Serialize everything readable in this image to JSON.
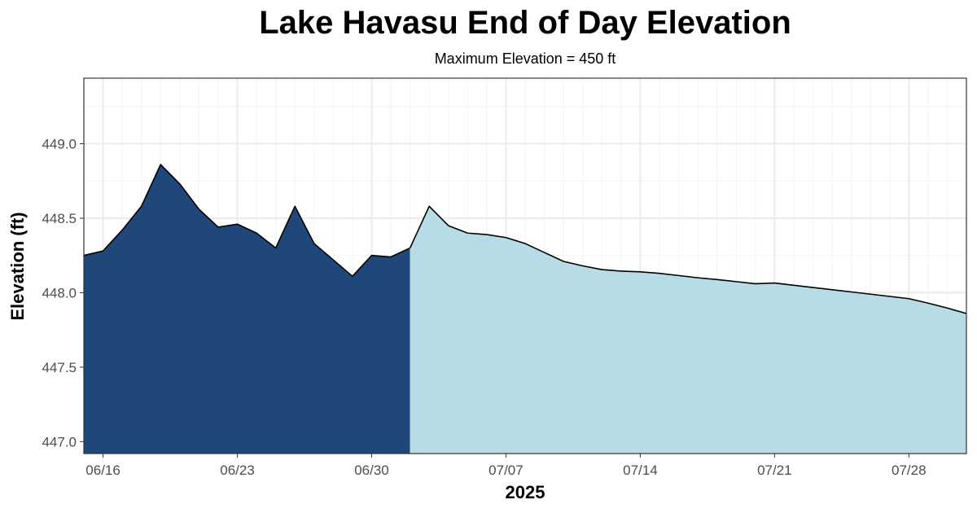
{
  "chart_data": {
    "type": "area",
    "title": "Lake Havasu End of Day Elevation",
    "subtitle": "Maximum Elevation = 450 ft",
    "xlabel": "2025",
    "ylabel": "Elevation (ft)",
    "x_start": "2025-06-15",
    "x_end": "2025-07-31",
    "ylim": [
      446.92,
      449.44
    ],
    "yticks": [
      447.0,
      447.5,
      448.0,
      448.5,
      449.0
    ],
    "ytick_labels": [
      "447.0",
      "447.5",
      "448.0",
      "448.5",
      "449.0"
    ],
    "xticks": [
      "2025-06-16",
      "2025-06-23",
      "2025-06-30",
      "2025-07-07",
      "2025-07-14",
      "2025-07-21",
      "2025-07-28"
    ],
    "xtick_labels": [
      "06/16",
      "06/23",
      "06/30",
      "07/07",
      "07/14",
      "07/21",
      "07/28"
    ],
    "grid": true,
    "colors": {
      "observed": "#20477a",
      "projected": "#b7dce6",
      "line": "#000000",
      "grid_major": "#ebebeb",
      "grid_minor": "#f3f3f3",
      "border": "#333333"
    },
    "series": [
      {
        "style": "observed",
        "x": [
          "2025-06-15",
          "2025-06-16",
          "2025-06-17",
          "2025-06-18",
          "2025-06-19",
          "2025-06-20",
          "2025-06-21",
          "2025-06-22",
          "2025-06-23",
          "2025-06-24",
          "2025-06-25",
          "2025-06-26",
          "2025-06-27",
          "2025-06-28",
          "2025-06-29",
          "2025-06-30",
          "2025-07-01",
          "2025-07-02"
        ],
        "values": [
          448.25,
          448.28,
          448.42,
          448.58,
          448.86,
          448.73,
          448.56,
          448.44,
          448.46,
          448.4,
          448.3,
          448.58,
          448.33,
          448.22,
          448.11,
          448.25,
          448.24,
          448.3
        ]
      },
      {
        "style": "projected",
        "x": [
          "2025-07-02",
          "2025-07-03",
          "2025-07-04",
          "2025-07-05",
          "2025-07-06",
          "2025-07-07",
          "2025-07-08",
          "2025-07-09",
          "2025-07-10",
          "2025-07-11",
          "2025-07-12",
          "2025-07-13",
          "2025-07-14",
          "2025-07-15",
          "2025-07-16",
          "2025-07-17",
          "2025-07-18",
          "2025-07-19",
          "2025-07-20",
          "2025-07-21",
          "2025-07-22",
          "2025-07-23",
          "2025-07-24",
          "2025-07-25",
          "2025-07-26",
          "2025-07-27",
          "2025-07-28",
          "2025-07-29",
          "2025-07-30",
          "2025-07-31"
        ],
        "values": [
          448.3,
          448.58,
          448.45,
          448.4,
          448.39,
          448.37,
          448.33,
          448.27,
          448.21,
          448.18,
          448.155,
          448.145,
          448.14,
          448.13,
          448.115,
          448.1,
          448.088,
          448.074,
          448.06,
          448.065,
          448.05,
          448.035,
          448.02,
          448.005,
          447.99,
          447.975,
          447.96,
          447.93,
          447.897,
          447.86
        ]
      }
    ]
  }
}
